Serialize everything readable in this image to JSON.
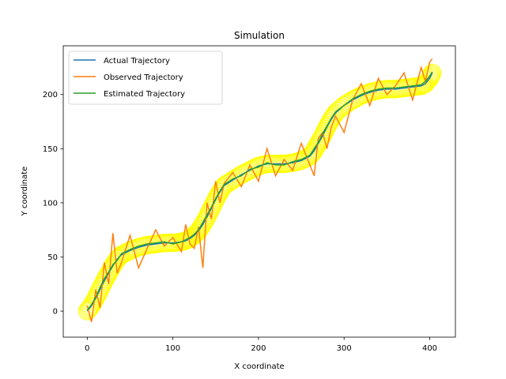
{
  "chart_data": {
    "type": "line",
    "title": "Simulation",
    "xlabel": "X coordinate",
    "ylabel": "Y coordinate",
    "xlim": [
      -28,
      430
    ],
    "ylim": [
      -24,
      245
    ],
    "xticks": [
      0,
      100,
      200,
      300,
      400
    ],
    "yticks": [
      0,
      50,
      100,
      150,
      200
    ],
    "grid": false,
    "legend_position": "top-left",
    "colors": {
      "actual": "#1f77b4",
      "observed": "#ff7f0e",
      "estimated": "#2ca02c",
      "band": "#ffff00"
    },
    "path": {
      "x": [
        0,
        5,
        10,
        15,
        20,
        25,
        30,
        35,
        40,
        50,
        60,
        70,
        80,
        90,
        100,
        110,
        115,
        120,
        125,
        130,
        135,
        140,
        145,
        150,
        155,
        160,
        170,
        180,
        190,
        200,
        210,
        220,
        230,
        240,
        250,
        260,
        265,
        270,
        275,
        280,
        285,
        290,
        300,
        310,
        320,
        330,
        340,
        350,
        360,
        370,
        380,
        390,
        395,
        400,
        403
      ],
      "y": [
        0,
        5,
        12,
        20,
        28,
        35,
        42,
        48,
        52,
        56,
        59,
        61,
        62,
        63,
        63,
        64,
        65,
        67,
        70,
        74,
        80,
        87,
        95,
        103,
        110,
        116,
        121,
        126,
        130,
        134,
        136,
        136,
        136,
        137,
        139,
        143,
        148,
        155,
        162,
        170,
        177,
        183,
        190,
        195,
        199,
        202,
        204,
        205,
        205,
        206,
        207,
        208,
        210,
        215,
        220
      ]
    },
    "series": [
      {
        "name": "Actual Trajectory",
        "values": [
          0,
          5,
          12,
          20,
          28,
          35,
          42,
          48,
          52,
          56,
          59,
          61,
          62,
          63,
          63,
          64,
          65,
          67,
          70,
          74,
          80,
          87,
          95,
          103,
          110,
          116,
          121,
          126,
          130,
          134,
          136,
          136,
          136,
          137,
          139,
          143,
          148,
          155,
          162,
          170,
          177,
          183,
          190,
          195,
          199,
          202,
          204,
          205,
          205,
          206,
          207,
          208,
          210,
          215,
          220
        ]
      },
      {
        "name": "Observed Trajectory",
        "values": [
          5,
          -10,
          20,
          3,
          45,
          25,
          72,
          35,
          45,
          70,
          40,
          58,
          75,
          60,
          68,
          55,
          80,
          62,
          58,
          78,
          40,
          100,
          85,
          120,
          100,
          118,
          128,
          115,
          135,
          120,
          150,
          125,
          140,
          130,
          155,
          135,
          125,
          160,
          165,
          150,
          170,
          180,
          165,
          195,
          210,
          190,
          215,
          200,
          208,
          220,
          195,
          225,
          212,
          230,
          233
        ]
      },
      {
        "name": "Estimated Trajectory",
        "values": [
          1,
          6,
          13,
          22,
          30,
          36,
          43,
          47,
          53,
          57,
          60,
          62,
          63,
          64,
          62,
          64,
          66,
          68,
          71,
          75,
          82,
          89,
          96,
          104,
          111,
          117,
          122,
          125,
          131,
          133,
          137,
          135,
          135,
          138,
          140,
          144,
          150,
          156,
          164,
          171,
          178,
          184,
          190,
          196,
          200,
          203,
          205,
          206,
          206,
          207,
          208,
          209,
          212,
          217,
          221
        ]
      }
    ]
  }
}
